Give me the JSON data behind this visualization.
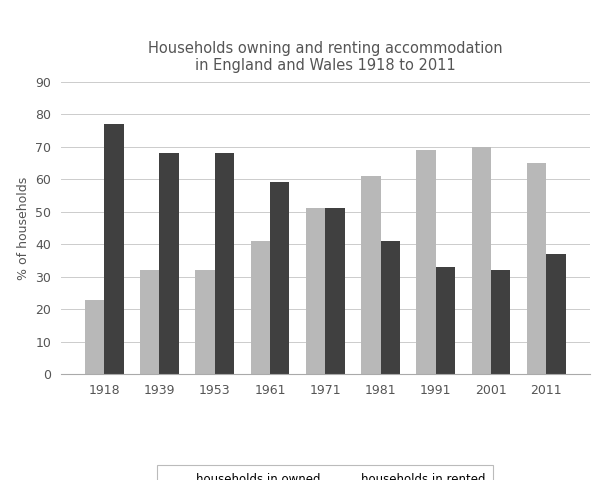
{
  "title": "Households owning and renting accommodation\nin England and Wales 1918 to 2011",
  "ylabel": "% of households",
  "years": [
    "1918",
    "1939",
    "1953",
    "1961",
    "1971",
    "1981",
    "1991",
    "2001",
    "2011"
  ],
  "owned": [
    23,
    32,
    32,
    41,
    51,
    61,
    69,
    70,
    65
  ],
  "rented": [
    77,
    68,
    68,
    59,
    51,
    41,
    33,
    32,
    37
  ],
  "owned_color": "#b8b8b8",
  "rented_color": "#404040",
  "ylim": [
    0,
    90
  ],
  "yticks": [
    0,
    10,
    20,
    30,
    40,
    50,
    60,
    70,
    80,
    90
  ],
  "legend_owned": "households in owned\naccommodation",
  "legend_rented": "households in rented\naccommodation",
  "bar_width": 0.35,
  "title_fontsize": 10.5,
  "axis_fontsize": 9,
  "tick_fontsize": 9,
  "legend_fontsize": 8.5,
  "grid_color": "#cccccc"
}
